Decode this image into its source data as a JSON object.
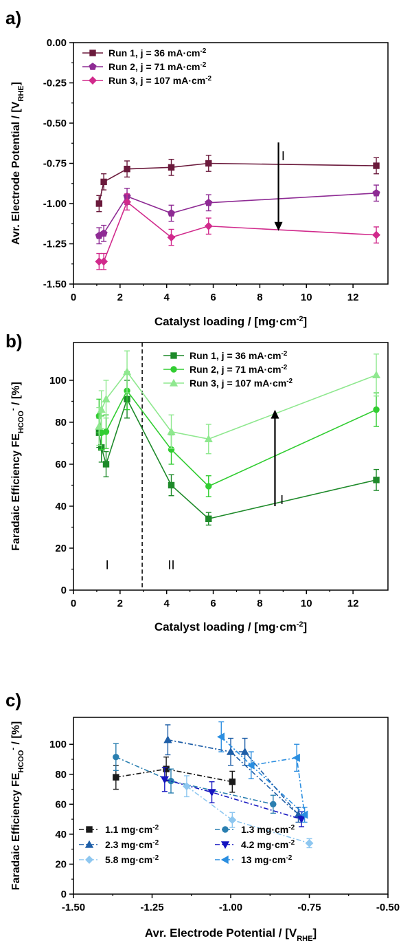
{
  "chart_data": [
    {
      "panel_label": "a)",
      "type": "line",
      "xlabel": "Catalyst loading / [mg·cm",
      "xlabel_sup": "-2",
      "xlabel_end": "]",
      "ylabel": "Avr. Electrode Potential / [V",
      "ylabel_sub": "RHE",
      "ylabel_end": "]",
      "xlim": [
        0,
        13.5
      ],
      "ylim": [
        -1.5,
        0.0
      ],
      "xticks": [
        "0",
        "2",
        "4",
        "6",
        "8",
        "10",
        "12"
      ],
      "xtick_values": [
        0,
        2,
        4,
        6,
        8,
        10,
        12
      ],
      "yticks": [
        "0.00",
        "-0.25",
        "-0.50",
        "-0.75",
        "-1.00",
        "-1.25",
        "-1.50"
      ],
      "ytick_values": [
        0,
        -0.25,
        -0.5,
        -0.75,
        -1.0,
        -1.25,
        -1.5
      ],
      "legend_position": "top-left",
      "series": [
        {
          "name": "Run 1, j = 36 mA·cm",
          "name_sup": "-2",
          "color": "#6b1a3c",
          "marker": "square",
          "x": [
            1.1,
            1.3,
            2.3,
            4.2,
            5.8,
            13.0
          ],
          "y": [
            -1.0,
            -0.865,
            -0.785,
            -0.775,
            -0.75,
            -0.765
          ],
          "err": [
            0.05,
            0.05,
            0.05,
            0.05,
            0.05,
            0.05
          ]
        },
        {
          "name": "Run 2, j = 71 mA·cm",
          "name_sup": "-2",
          "color": "#8e2b94",
          "marker": "pentagon",
          "x": [
            1.1,
            1.3,
            2.3,
            4.2,
            5.8,
            13.0
          ],
          "y": [
            -1.2,
            -1.185,
            -0.955,
            -1.06,
            -0.995,
            -0.935
          ],
          "err": [
            0.05,
            0.05,
            0.05,
            0.05,
            0.05,
            0.05
          ]
        },
        {
          "name": "Run 3, j = 107 mA·cm",
          "name_sup": "-2",
          "color": "#d12a8c",
          "marker": "diamond",
          "x": [
            1.1,
            1.3,
            2.3,
            4.2,
            5.8,
            13.0
          ],
          "y": [
            -1.36,
            -1.36,
            -0.99,
            -1.21,
            -1.14,
            -1.195
          ],
          "err": [
            0.05,
            0.05,
            0.05,
            0.05,
            0.05,
            0.05
          ]
        }
      ],
      "arrow": {
        "x": 8.8,
        "y_from": -0.62,
        "y_to": -1.17
      },
      "annotations": [
        {
          "text": "I",
          "x": 9.0,
          "y": -0.705
        }
      ]
    },
    {
      "panel_label": "b)",
      "type": "line",
      "xlabel": "Catalyst loading / [mg·cm",
      "xlabel_sup": "-2",
      "xlabel_end": "]",
      "ylabel": "Faradaic Efficiency FE",
      "ylabel_sub": "HCOO",
      "ylabel_sup": "-",
      "ylabel_end": " / [%]",
      "xlim": [
        0,
        13.5
      ],
      "ylim": [
        0,
        118
      ],
      "xticks": [
        "0",
        "2",
        "4",
        "6",
        "8",
        "10",
        "12"
      ],
      "xtick_values": [
        0,
        2,
        4,
        6,
        8,
        10,
        12
      ],
      "yticks": [
        "0",
        "20",
        "40",
        "60",
        "80",
        "100"
      ],
      "ytick_values": [
        0,
        20,
        40,
        60,
        80,
        100
      ],
      "legend_position": "top-right",
      "series": [
        {
          "name": "Run 1, j = 36 mA·cm",
          "name_sup": "-2",
          "color": "#1e8a2a",
          "marker": "square",
          "x": [
            1.1,
            1.2,
            1.4,
            2.3,
            4.2,
            5.8,
            13.0
          ],
          "y": [
            75,
            68,
            60,
            91,
            50,
            34,
            52.5
          ],
          "err": [
            7,
            7,
            6,
            9,
            5,
            3,
            5
          ]
        },
        {
          "name": "Run 2, j = 71 mA·cm",
          "name_sup": "-2",
          "color": "#32cd32",
          "marker": "circle",
          "x": [
            1.1,
            1.2,
            1.4,
            2.3,
            4.2,
            5.8,
            13.0
          ],
          "y": [
            83,
            75,
            75.5,
            95,
            67,
            49.5,
            86
          ],
          "err": [
            8,
            8,
            8,
            9,
            7,
            5,
            8
          ]
        },
        {
          "name": "Run 3, j = 107 mA·cm",
          "name_sup": "-2",
          "color": "#8fe88f",
          "marker": "triangle",
          "x": [
            1.1,
            1.2,
            1.4,
            2.3,
            4.2,
            5.8,
            13.0
          ],
          "y": [
            78,
            86,
            91,
            104,
            75.5,
            72,
            102.5
          ],
          "err": [
            9,
            9,
            9,
            10,
            8,
            7,
            10
          ]
        }
      ],
      "divider_x": 2.95,
      "arrow": {
        "x": 8.65,
        "y_from": 40,
        "y_to": 86
      },
      "annotations": [
        {
          "text": "I",
          "x": 8.95,
          "y": 43
        },
        {
          "text": "I",
          "x": 1.45,
          "y": 12
        },
        {
          "text": "II",
          "x": 4.2,
          "y": 12
        }
      ]
    },
    {
      "panel_label": "c)",
      "type": "line",
      "xlabel": "Avr. Electrode Potential  / [V",
      "xlabel_sub": "RHE",
      "xlabel_end": "]",
      "ylabel": "Faradaic Efficiency FE",
      "ylabel_sub": "HCOO",
      "ylabel_sup": "-",
      "ylabel_end": " / [%]",
      "xlim": [
        -1.5,
        -0.5
      ],
      "ylim": [
        0,
        118
      ],
      "xticks": [
        "-1.50",
        "-1.25",
        "-1.00",
        "-0.75",
        "-0.50"
      ],
      "xtick_values": [
        -1.5,
        -1.25,
        -1.0,
        -0.75,
        -0.5
      ],
      "yticks": [
        "0",
        "20",
        "40",
        "60",
        "80",
        "100"
      ],
      "ytick_values": [
        0,
        20,
        40,
        60,
        80,
        100
      ],
      "legend_position": "bottom",
      "series": [
        {
          "name": "1.1 mg·cm",
          "name_sup": "-2",
          "color": "#1a1a1a",
          "marker": "square",
          "x": [
            -1.365,
            -1.205,
            -0.995
          ],
          "y": [
            78,
            83.5,
            75
          ],
          "err": [
            8,
            8,
            7
          ]
        },
        {
          "name": "1.3 mg·cm",
          "name_sup": "-2",
          "color": "#2a7fb0",
          "marker": "circle",
          "x": [
            -1.365,
            -1.19,
            -0.865
          ],
          "y": [
            91.5,
            75.5,
            60
          ],
          "err": [
            9,
            8,
            6
          ]
        },
        {
          "name": "2.3 mg·cm",
          "name_sup": "-2",
          "color": "#1f5fa8",
          "marker": "triangle",
          "x": [
            -1.2,
            -1.0,
            -0.785
          ],
          "y": [
            103,
            95,
            53
          ],
          "err": [
            10,
            9,
            5
          ]
        },
        {
          "name": "4.2 mg·cm",
          "name_sup": "-2",
          "color": "#1515c0",
          "marker": "triangle-down",
          "x": [
            -1.21,
            -1.06,
            -0.775
          ],
          "y": [
            76.5,
            68,
            50
          ],
          "err": [
            8,
            7,
            5
          ]
        },
        {
          "name": "5.8 mg·cm",
          "name_sup": "-2",
          "color": "#8ec7f0",
          "marker": "diamond",
          "x": [
            -1.14,
            -0.995,
            -0.75
          ],
          "y": [
            72,
            49.5,
            34
          ],
          "err": [
            7,
            5,
            3
          ]
        },
        {
          "name": "13 mg·cm",
          "name_sup": "-2",
          "color": "#2b8ee0",
          "marker": "triangle-left",
          "x": [
            -1.03,
            -0.935,
            -0.765
          ],
          "y": [
            105,
            86,
            53
          ],
          "err": [
            10,
            9,
            5
          ]
        }
      ],
      "extra_series_points": [
        {
          "series": "2.3 mg·cm",
          "x": [
            -0.955
          ],
          "y": [
            95
          ]
        },
        {
          "series": "13 mg·cm",
          "x": [
            -0.79
          ],
          "y": [
            91
          ]
        }
      ]
    }
  ]
}
